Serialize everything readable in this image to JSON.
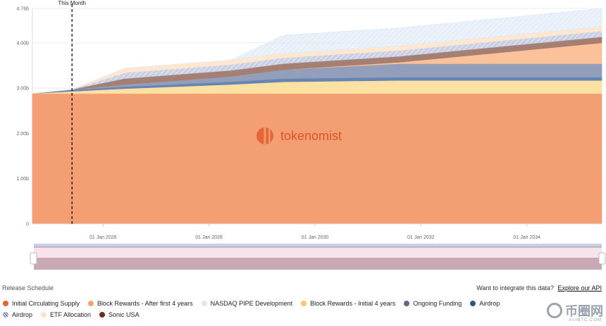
{
  "chart_data": {
    "type": "area",
    "stacked": true,
    "x_axis": {
      "ticks": [
        "01 Jan 2026",
        "01 Jan 2028",
        "01 Jan 2030",
        "01 Jan 2032",
        "01 Jan 2034"
      ],
      "range": [
        "2024-09-01",
        "2035-06-01"
      ]
    },
    "y_axis": {
      "ticks": [
        "0",
        "1.00b",
        "2.00b",
        "3.00b",
        "4.00b",
        "4.76b"
      ],
      "range": [
        0,
        4.76
      ]
    },
    "grid": true,
    "marker": {
      "label": "This Month",
      "date": "2025-06-01"
    },
    "x": [
      "2024-09-01",
      "2025-06-01",
      "2026-06-01",
      "2028-06-01",
      "2029-06-01",
      "2031-08-01",
      "2035-06-01"
    ],
    "series": [
      {
        "name": "Initial Circulating Supply",
        "color": "#f39a6b",
        "values": [
          2.88,
          2.88,
          2.88,
          2.88,
          2.88,
          2.88,
          2.88
        ]
      },
      {
        "name": "Block Rewards - Initial 4 years",
        "color": "#fddf9e",
        "values": [
          0.0,
          0.05,
          0.11,
          0.2,
          0.26,
          0.29,
          0.29
        ]
      },
      {
        "name": "Airdrop",
        "color": "#5d7eb0",
        "values": [
          0.0,
          0.03,
          0.04,
          0.06,
          0.07,
          0.07,
          0.07
        ]
      },
      {
        "name": "Ongoing Funding",
        "color": "#8d99b7",
        "values": [
          0.0,
          0.01,
          0.05,
          0.12,
          0.2,
          0.3,
          0.3
        ]
      },
      {
        "name": "Block Rewards - After first 4 years",
        "color": "#fbbf95",
        "values": [
          0.0,
          0.0,
          0.0,
          0.0,
          0.0,
          0.03,
          0.46
        ]
      },
      {
        "name": "Sonic USA",
        "color": "#a1786c",
        "values": [
          0.0,
          0.0,
          0.13,
          0.13,
          0.13,
          0.13,
          0.13
        ]
      },
      {
        "name": "Airdrop",
        "color": "#b8c0d9",
        "hatch": true,
        "values": [
          0.0,
          0.0,
          0.13,
          0.13,
          0.13,
          0.13,
          0.13
        ]
      },
      {
        "name": "ETF Allocation",
        "color": "#fde6cf",
        "values": [
          0.0,
          0.0,
          0.1,
          0.1,
          0.1,
          0.1,
          0.1
        ]
      },
      {
        "name": "NASDAQ PIPE Development",
        "color": "#dde8f4",
        "hatch": true,
        "values": [
          0.0,
          0.0,
          0.0,
          0.0,
          0.4,
          0.4,
          0.4
        ]
      }
    ],
    "legend": [
      {
        "name": "Initial Circulating Supply",
        "color": "#e8632e"
      },
      {
        "name": "Block Rewards - After first 4 years",
        "color": "#f7a46a"
      },
      {
        "name": "NASDAQ PIPE Development",
        "color": "#dce7f3"
      },
      {
        "name": "Block Rewards - Initial 4 years",
        "color": "#fbc96a"
      },
      {
        "name": "Ongoing Funding",
        "color": "#5e6a82"
      },
      {
        "name": "Airdrop",
        "color": "#2e5586"
      },
      {
        "name": "Airdrop",
        "color": "#5a6e9a",
        "hatch": true
      },
      {
        "name": "ETF Allocation",
        "color": "#fde3c4"
      },
      {
        "name": "Sonic USA",
        "color": "#6b2e1e"
      }
    ],
    "legend_position": "bottom"
  },
  "watermark": "tokenomist",
  "footer": {
    "section_title": "Release Schedule",
    "api_prompt": "Want to integrate this data?",
    "api_link": "Explore our API"
  },
  "corner_watermark": {
    "main": "币圈网",
    "sub": "ALIBTC.COM"
  }
}
